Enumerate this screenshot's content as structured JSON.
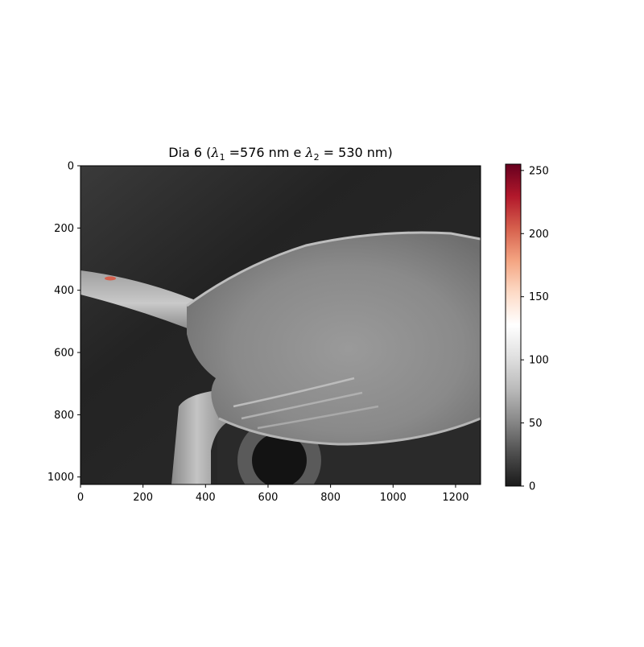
{
  "chart_data": {
    "type": "heatmap",
    "title": {
      "prefix": "Dia 6 (",
      "lambda_symbol": "λ",
      "lambda1_sub": "1",
      "lambda1_text": " =576 nm e ",
      "lambda2_sub": "2",
      "lambda2_text": " = 530 nm)"
    },
    "xlabel": "",
    "ylabel": "",
    "xlim": [
      0,
      1280
    ],
    "ylim": [
      1024,
      0
    ],
    "x_ticks": [
      0,
      200,
      400,
      600,
      800,
      1000,
      1200
    ],
    "y_ticks": [
      0,
      200,
      400,
      600,
      800,
      1000
    ],
    "colorbar": {
      "range": [
        0,
        255
      ],
      "ticks": [
        0,
        50,
        100,
        150,
        200,
        250
      ],
      "colormap": "RdGy_r",
      "stops": [
        "#1a1a1a",
        "#4d4d4d",
        "#878787",
        "#bababa",
        "#e0e0e0",
        "#ffffff",
        "#fddbc7",
        "#f4a582",
        "#d6604d",
        "#b2182b",
        "#67001f"
      ]
    },
    "grid": false,
    "image_description_values": {
      "background_level": 30,
      "specimen_body_level": 140,
      "peak_value": 255
    }
  }
}
